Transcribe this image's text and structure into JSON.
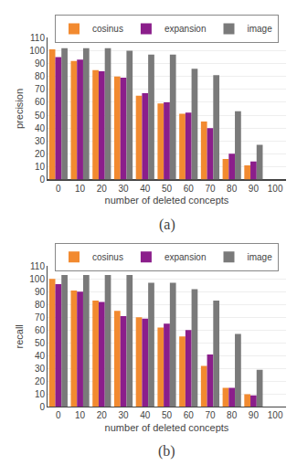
{
  "chart_data": [
    {
      "type": "bar",
      "categories": [
        "0",
        "10",
        "20",
        "30",
        "40",
        "50",
        "60",
        "70",
        "80",
        "90",
        "100"
      ],
      "series": [
        {
          "name": "cosinus",
          "color": "#F28A30",
          "values": [
            101,
            92,
            85,
            80,
            65,
            59,
            51,
            45,
            16,
            11,
            0
          ]
        },
        {
          "name": "expansion",
          "color": "#8B1E8B",
          "values": [
            95,
            93,
            84,
            79,
            67,
            60,
            52,
            40,
            20,
            14,
            0
          ]
        },
        {
          "name": "image",
          "color": "#7A7A7A",
          "values": [
            102,
            102,
            102,
            100,
            97,
            97,
            86,
            81,
            53,
            27,
            0
          ]
        }
      ],
      "x_label": "number of deleted concepts",
      "y_label": "precision",
      "annotations": [
        "(a)"
      ],
      "ylim": [
        0,
        110
      ],
      "yticks": [
        0,
        10,
        20,
        30,
        40,
        50,
        60,
        70,
        80,
        90,
        100,
        110
      ],
      "grid": true,
      "legend": "top"
    },
    {
      "type": "bar",
      "categories": [
        "0",
        "10",
        "20",
        "30",
        "40",
        "50",
        "60",
        "70",
        "80",
        "90",
        "100"
      ],
      "series": [
        {
          "name": "cosinus",
          "color": "#F28A30",
          "values": [
            100,
            91,
            83,
            75,
            70,
            62,
            55,
            32,
            15,
            10,
            0
          ]
        },
        {
          "name": "expansion",
          "color": "#8B1E8B",
          "values": [
            96,
            90,
            82,
            71,
            69,
            65,
            60,
            41,
            15,
            9,
            0
          ]
        },
        {
          "name": "image",
          "color": "#7A7A7A",
          "values": [
            103,
            103,
            103,
            103,
            97,
            97,
            92,
            83,
            57,
            29,
            0
          ]
        }
      ],
      "x_label": "number of deleted concepts",
      "y_label": "recall",
      "annotations": [
        "(b)"
      ],
      "ylim": [
        0,
        110
      ],
      "yticks": [
        0,
        10,
        20,
        30,
        40,
        50,
        60,
        70,
        80,
        90,
        100,
        110
      ],
      "grid": true,
      "legend": "top"
    }
  ]
}
